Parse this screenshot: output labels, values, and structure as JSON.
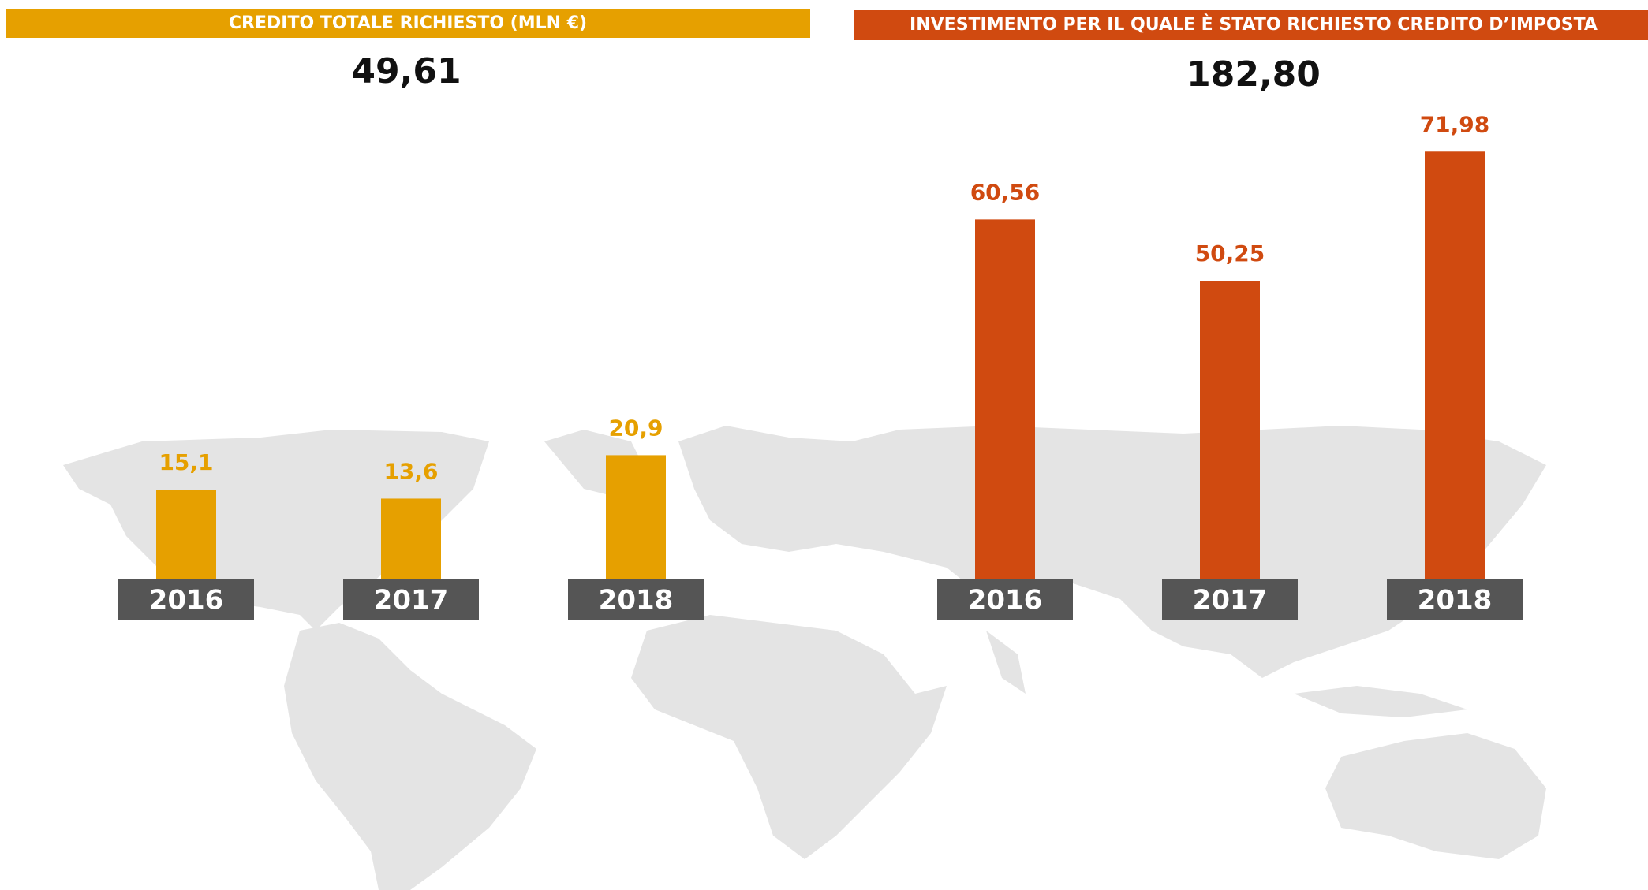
{
  "chart_data": [
    {
      "type": "bar",
      "title": "CREDITO TOTALE RICHIESTO (MLN €)",
      "total": "49,61",
      "categories": [
        "2016",
        "2017",
        "2018"
      ],
      "values": [
        15.1,
        13.6,
        20.9
      ],
      "value_labels": [
        "15,1",
        "13,6",
        "20,9"
      ],
      "color": "#e6a000"
    },
    {
      "type": "bar",
      "title": "INVESTIMENTO PER IL QUALE È STATO RICHIESTO CREDITO D’IMPOSTA",
      "total": "182,80",
      "categories": [
        "2016",
        "2017",
        "2018"
      ],
      "values": [
        60.56,
        50.25,
        71.98
      ],
      "value_labels": [
        "60,56",
        "50,25",
        "71,98"
      ],
      "color": "#d04a10"
    }
  ]
}
